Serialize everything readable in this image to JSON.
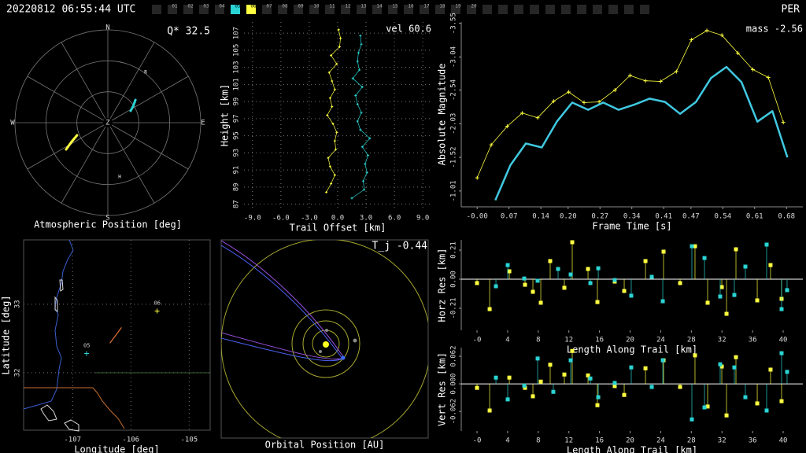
{
  "header": {
    "timestamp": "20220812 06:55:44 UTC",
    "shower": "PER",
    "stations": [
      {
        "label": "01"
      },
      {
        "label": "02"
      },
      {
        "label": "03"
      },
      {
        "label": "04"
      },
      {
        "label": "05",
        "color": "#2ad4d4"
      },
      {
        "label": "06",
        "color": "#ffff40"
      },
      {
        "label": "07"
      },
      {
        "label": "08"
      },
      {
        "label": "09"
      },
      {
        "label": "10"
      },
      {
        "label": "11"
      },
      {
        "label": "12"
      },
      {
        "label": "13"
      },
      {
        "label": "14"
      },
      {
        "label": "15"
      },
      {
        "label": "16"
      },
      {
        "label": "17"
      },
      {
        "label": "18"
      },
      {
        "label": "19"
      },
      {
        "label": "20"
      }
    ]
  },
  "chart_data": [
    {
      "type": "polar",
      "title": "Atmospheric Position [deg]",
      "annotation": "Q* 32.5",
      "labels": [
        "N",
        "E",
        "S",
        "W"
      ],
      "center_label": "Z",
      "rlim": [
        0,
        90
      ],
      "rticks": [
        30,
        60,
        90
      ],
      "series": [
        {
          "color": "#2ad4d4",
          "azimuth": [
            62.6,
            56,
            50.4
          ],
          "zenith": [
            24.9,
            30,
            34.7
          ]
        },
        {
          "color": "#ffff40",
          "azimuth": [
            237.3,
            242,
            247.7
          ],
          "zenith": [
            48,
            40,
            32.2
          ]
        }
      ],
      "markers": [
        {
          "label": "R",
          "azimuth": 36.9,
          "zenith": 61
        },
        {
          "label": "H",
          "azimuth": 167.7,
          "zenith": 53.9
        }
      ]
    },
    {
      "type": "scatter",
      "annotation": "vel 60.6",
      "xlabel": "Trail Offset [km]",
      "ylabel": "Height [km]",
      "xlim": [
        -9.9,
        9.9
      ],
      "ylim": [
        86.5,
        108.3
      ],
      "grid": true,
      "xticks": [
        {
          "value": -9,
          "label": "-9.0"
        },
        {
          "value": -6,
          "label": "-6.0"
        },
        {
          "value": -3,
          "label": "-3.0"
        },
        {
          "value": 0,
          "label": "0.0"
        },
        {
          "value": 3,
          "label": "3.0"
        },
        {
          "value": 6,
          "label": "6.0"
        },
        {
          "value": 9,
          "label": "9.0"
        }
      ],
      "yticks": [
        87,
        89,
        91,
        93,
        95,
        97,
        99,
        101,
        103,
        105,
        107
      ],
      "series": [
        {
          "color": "#ffff40",
          "x": [
            -1.2,
            -0.7,
            -0.3,
            -0.8,
            -1.0,
            -0.2,
            -0.3,
            -0.1,
            -0.5,
            -1.1,
            -0.6,
            -0.8,
            -0.3,
            -0.6,
            -0.9,
            -0.1,
            -0.7,
            0.2,
            0.3,
            0.1
          ],
          "values": [
            88.4,
            89.4,
            90.4,
            91.4,
            92.4,
            93.4,
            94.4,
            95.4,
            96.4,
            97.4,
            98.4,
            99.4,
            100.4,
            101.4,
            102.4,
            103.4,
            104.4,
            105.4,
            106.4,
            107.4
          ]
        },
        {
          "color": "#2ad4d4",
          "x": [
            1.5,
            2.8,
            2.7,
            3.1,
            2.9,
            3.2,
            2.6,
            3.4,
            2.4,
            2.1,
            2.5,
            2.1,
            1.9,
            2.6,
            1.6,
            2.3,
            2.1,
            2.2,
            2.5,
            2.4
          ],
          "values": [
            87.7,
            88.7,
            89.7,
            90.7,
            91.7,
            92.7,
            93.7,
            94.7,
            95.7,
            96.7,
            97.7,
            98.7,
            99.7,
            100.7,
            101.7,
            102.7,
            103.7,
            104.7,
            105.7,
            106.7
          ]
        }
      ]
    },
    {
      "type": "line",
      "annotation": "mass -2.56",
      "xlabel": "Frame Time [s]",
      "ylabel": "Absolute Magnitude",
      "xlim": [
        -0.035,
        0.716
      ],
      "ylim": [
        -0.77,
        -3.57
      ],
      "grid": false,
      "xticks": [
        {
          "value": 0,
          "label": "-0.00"
        },
        0.07,
        0.14,
        {
          "value": 0.2,
          "label": "0.20"
        },
        0.27,
        0.34,
        0.41,
        0.47,
        0.54,
        0.61,
        0.68
      ],
      "yticks": [
        -3.55,
        -3.04,
        -2.54,
        -2.03,
        -1.52,
        -1.01
      ],
      "series": [
        {
          "color": "#ffff40",
          "marker": "+",
          "x": [
            0.0,
            0.031,
            0.066,
            0.099,
            0.133,
            0.168,
            0.201,
            0.235,
            0.268,
            0.303,
            0.336,
            0.37,
            0.403,
            0.438,
            0.471,
            0.505,
            0.538,
            0.573,
            0.606,
            0.64,
            0.673
          ],
          "values": [
            -1.21,
            -1.71,
            -1.99,
            -2.19,
            -2.12,
            -2.37,
            -2.51,
            -2.35,
            -2.36,
            -2.54,
            -2.76,
            -2.68,
            -2.67,
            -2.82,
            -3.3,
            -3.44,
            -3.37,
            -3.1,
            -2.85,
            -2.73,
            -2.05
          ]
        },
        {
          "color": "#40c8e0",
          "x": [
            0.04,
            0.073,
            0.107,
            0.142,
            0.175,
            0.209,
            0.244,
            0.277,
            0.311,
            0.346,
            0.379,
            0.413,
            0.446,
            0.481,
            0.514,
            0.548,
            0.581,
            0.616,
            0.649,
            0.682
          ],
          "values": [
            -0.87,
            -1.4,
            -1.73,
            -1.67,
            -2.06,
            -2.35,
            -2.24,
            -2.35,
            -2.24,
            -2.32,
            -2.41,
            -2.36,
            -2.18,
            -2.36,
            -2.72,
            -2.89,
            -2.66,
            -2.06,
            -2.22,
            -1.52
          ]
        }
      ]
    },
    {
      "type": "map",
      "xlabel": "Longitude [deg]",
      "ylabel": "Latitude [deg]",
      "xlim": [
        -107.84,
        -104.64
      ],
      "ylim": [
        31.16,
        33.94
      ],
      "xticks": [
        -107,
        -106,
        -105
      ],
      "yticks": [
        32,
        33
      ],
      "grid": true,
      "stations": [
        {
          "label": "05",
          "color": "#2ad4d4",
          "lon": -106.76,
          "lat": 32.28
        },
        {
          "label": "06",
          "color": "#ffff40",
          "lon": -105.55,
          "lat": 32.9
        }
      ],
      "track": {
        "color": "#e07030",
        "x": [
          -106.36,
          -106.16
        ],
        "values": [
          32.43,
          32.66
        ]
      }
    },
    {
      "type": "orbit",
      "title": "Orbital Position [AU]",
      "annotation": "T_j -0.44"
    },
    {
      "type": "stem",
      "xlabel": "Length Along Trail [km]",
      "ylabel": "Horz Res [km]",
      "xlim": [
        -2.06,
        42.57
      ],
      "ylim": [
        -0.369,
        0.284
      ],
      "xticks": [
        {
          "value": 0,
          "label": "-0"
        },
        4,
        8,
        12,
        16,
        20,
        24,
        28,
        32,
        36,
        40
      ],
      "yticks": [
        -0.21,
        {
          "value": 0,
          "label": "0.00"
        },
        0.21
      ],
      "series": [
        {
          "color": "#ffff40",
          "x": [
            0.0,
            1.65,
            4.22,
            6.27,
            7.3,
            8.33,
            9.56,
            11.41,
            12.44,
            14.5,
            15.73,
            17.99,
            19.23,
            22.01,
            24.37,
            26.53,
            28.48,
            30.13,
            31.98,
            32.6,
            33.83,
            36.61,
            38.35,
            39.79
          ],
          "values": [
            -0.028,
            -0.216,
            0.057,
            -0.04,
            -0.091,
            -0.17,
            0.131,
            -0.062,
            0.267,
            0.074,
            -0.165,
            -0.017,
            -0.085,
            0.131,
            0.199,
            -0.028,
            0.238,
            -0.17,
            -0.057,
            -0.25,
            0.216,
            -0.153,
            0.102,
            -0.142
          ]
        },
        {
          "color": "#2ad4d4",
          "x": [
            2.47,
            4.01,
            6.17,
            7.92,
            10.59,
            12.24,
            14.81,
            15.84,
            17.99,
            20.15,
            22.83,
            24.27,
            28.07,
            29.72,
            31.77,
            33.62,
            35.06,
            37.84,
            39.79,
            40.51
          ],
          "values": [
            -0.051,
            0.102,
            0.005,
            -0.011,
            0.074,
            0.034,
            -0.028,
            0.079,
            -0.006,
            -0.119,
            0.017,
            -0.159,
            0.238,
            0.153,
            -0.125,
            -0.114,
            0.091,
            0.25,
            -0.216,
            -0.079
          ]
        }
      ]
    },
    {
      "type": "stem",
      "xlabel": "Length Along Trail [km]",
      "ylabel": "Vert Res [km]",
      "xlim": [
        -2.06,
        42.57
      ],
      "ylim": [
        -0.106,
        0.0815
      ],
      "xticks": [
        {
          "value": 0,
          "label": "-0"
        },
        4,
        8,
        12,
        16,
        20,
        24,
        28,
        32,
        36,
        40
      ],
      "yticks": [
        -0.062,
        {
          "value": 0,
          "label": "0.000"
        },
        0.062
      ],
      "series": [
        {
          "color": "#ffff40",
          "x": [
            0.0,
            1.65,
            4.22,
            6.27,
            7.3,
            8.33,
            9.56,
            11.41,
            12.44,
            14.5,
            15.73,
            17.99,
            19.23,
            22.01,
            24.37,
            26.53,
            28.48,
            30.13,
            31.98,
            32.6,
            33.83,
            36.61,
            38.35,
            39.79
          ],
          "values": [
            -0.009,
            -0.06,
            0.014,
            -0.009,
            -0.028,
            0.005,
            0.043,
            0.021,
            0.074,
            0.019,
            -0.048,
            -0.005,
            -0.025,
            0.035,
            0.053,
            -0.007,
            0.064,
            -0.051,
            0.039,
            -0.071,
            0.06,
            -0.044,
            0.032,
            -0.039
          ]
        },
        {
          "color": "#2ad4d4",
          "x": [
            2.47,
            4.01,
            6.17,
            7.92,
            9.97,
            12.24,
            14.81,
            15.84,
            17.99,
            20.15,
            22.83,
            24.27,
            28.07,
            29.72,
            31.77,
            33.62,
            35.06,
            37.84,
            39.79,
            40.51
          ],
          "values": [
            0.014,
            -0.035,
            -0.004,
            0.057,
            -0.018,
            0.053,
            0.012,
            -0.03,
            0.002,
            0.037,
            -0.007,
            0.053,
            -0.08,
            -0.053,
            0.044,
            0.037,
            -0.03,
            -0.06,
            0.069,
            0.027
          ]
        }
      ]
    }
  ]
}
